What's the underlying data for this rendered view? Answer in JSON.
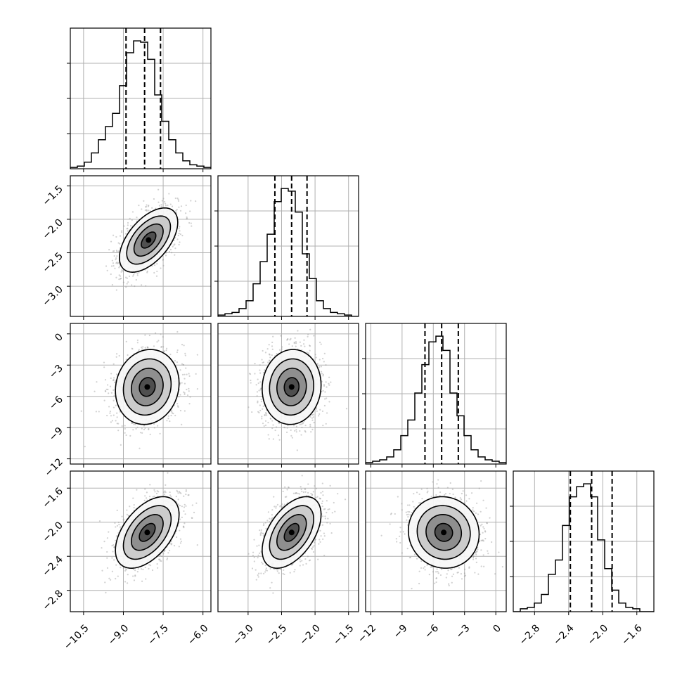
{
  "chart_data": {
    "type": "corner",
    "grid": true,
    "quantile_line_style": "dashed",
    "parameters": [
      {
        "range": [
          -11.0,
          -5.7
        ],
        "ticks": [
          -10.5,
          -9.0,
          -7.5,
          -6.0
        ],
        "tick_labels": [
          "−10.5",
          "−9.0",
          "−7.5",
          "−6.0"
        ],
        "quantiles": [
          -8.9,
          -8.2,
          -7.6
        ],
        "hist": {
          "edges_start": -11.0,
          "bin_width": 0.265,
          "counts": [
            0.01,
            0.02,
            0.05,
            0.12,
            0.22,
            0.32,
            0.42,
            0.63,
            0.88,
            0.97,
            0.96,
            0.83,
            0.56,
            0.36,
            0.22,
            0.12,
            0.06,
            0.03,
            0.02,
            0.01
          ]
        }
      },
      {
        "range": [
          -3.45,
          -1.35
        ],
        "ticks": [
          -3.0,
          -2.5,
          -2.0,
          -1.5
        ],
        "tick_labels": [
          "−3.0",
          "−2.5",
          "−2.0",
          "−1.5"
        ],
        "quantiles": [
          -2.6,
          -2.35,
          -2.12
        ],
        "hist": {
          "edges_start": -3.45,
          "bin_width": 0.105,
          "counts": [
            0.01,
            0.02,
            0.03,
            0.06,
            0.12,
            0.25,
            0.42,
            0.63,
            0.88,
            0.98,
            0.96,
            0.8,
            0.48,
            0.29,
            0.12,
            0.06,
            0.03,
            0.02,
            0.01,
            0.0
          ]
        }
      },
      {
        "range": [
          -12.5,
          1.0
        ],
        "ticks": [
          -12,
          -9,
          -6,
          -3,
          0
        ],
        "tick_labels": [
          "−12",
          "−9",
          "−6",
          "−3",
          "0"
        ],
        "quantiles": [
          -6.8,
          -5.2,
          -3.6
        ],
        "hist": {
          "edges_start": -12.5,
          "bin_width": 0.675,
          "counts": [
            0.01,
            0.02,
            0.03,
            0.05,
            0.1,
            0.2,
            0.31,
            0.5,
            0.7,
            0.86,
            0.9,
            0.8,
            0.5,
            0.34,
            0.2,
            0.1,
            0.05,
            0.03,
            0.02,
            0.01
          ]
        }
      },
      {
        "range": [
          -3.05,
          -1.4
        ],
        "ticks": [
          -2.8,
          -2.4,
          -2.0,
          -1.6
        ],
        "tick_labels": [
          "−2.8",
          "−2.4",
          "−2.0",
          "−1.6"
        ],
        "quantiles": [
          -2.38,
          -2.13,
          -1.89
        ],
        "hist": {
          "edges_start": -3.05,
          "bin_width": 0.0825,
          "counts": [
            0.0,
            0.02,
            0.03,
            0.06,
            0.12,
            0.26,
            0.36,
            0.6,
            0.8,
            0.87,
            0.89,
            0.8,
            0.5,
            0.3,
            0.15,
            0.06,
            0.03,
            0.02,
            0.0,
            0.0
          ]
        }
      }
    ],
    "pairs": [
      {
        "x": 0,
        "y": 1,
        "mean": [
          -8.05,
          -2.31
        ],
        "sd": [
          0.55,
          0.24
        ],
        "rho": 0.55
      },
      {
        "x": 0,
        "y": 2,
        "mean": [
          -8.1,
          -5.1
        ],
        "sd": [
          0.6,
          1.8
        ],
        "rho": 0.1
      },
      {
        "x": 1,
        "y": 2,
        "mean": [
          -2.35,
          -5.1
        ],
        "sd": [
          0.22,
          1.8
        ],
        "rho": 0.05
      },
      {
        "x": 0,
        "y": 3,
        "mean": [
          -8.1,
          -2.12
        ],
        "sd": [
          0.6,
          0.21
        ],
        "rho": 0.5
      },
      {
        "x": 1,
        "y": 3,
        "mean": [
          -2.35,
          -2.12
        ],
        "sd": [
          0.22,
          0.21
        ],
        "rho": 0.5
      },
      {
        "x": 2,
        "y": 3,
        "mean": [
          -5.0,
          -2.12
        ],
        "sd": [
          1.7,
          0.21
        ],
        "rho": -0.05
      }
    ],
    "contour_levels_sigma": [
      0.5,
      1.0,
      1.5,
      2.0
    ],
    "colors": {
      "line": "#000000",
      "grid": "#b0b0b0",
      "scatter": "#9a9a9a"
    }
  }
}
